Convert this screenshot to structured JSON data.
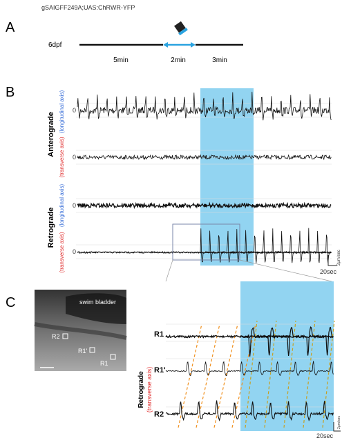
{
  "header": {
    "genotype": "gSAIGFF249A;UAS:ChRWR-YFP"
  },
  "panel_a": {
    "label": "A",
    "age": "6dpf",
    "segments": [
      "5min",
      "2min",
      "3min"
    ]
  },
  "panel_b": {
    "label": "B",
    "groups": [
      {
        "name": "Anterograde",
        "axes": [
          "(longitudinal axis)",
          "(transverse axis)"
        ]
      },
      {
        "name": "Retrograde",
        "axes": [
          "(longitudinal axis)",
          "(transverse axis)"
        ]
      }
    ],
    "zero_label": "0",
    "scale_time": "20sec",
    "scale_speed": "2μm/sec"
  },
  "panel_c": {
    "label": "C",
    "image_label": "swim bladder",
    "rois": [
      "R2",
      "R1'",
      "R1"
    ],
    "group": "Retrograde",
    "axis": "(transverse axis)",
    "traces": [
      "R1",
      "R1'",
      "R2"
    ],
    "scale_time": "20sec",
    "scale_speed": "2μm/sec"
  }
}
